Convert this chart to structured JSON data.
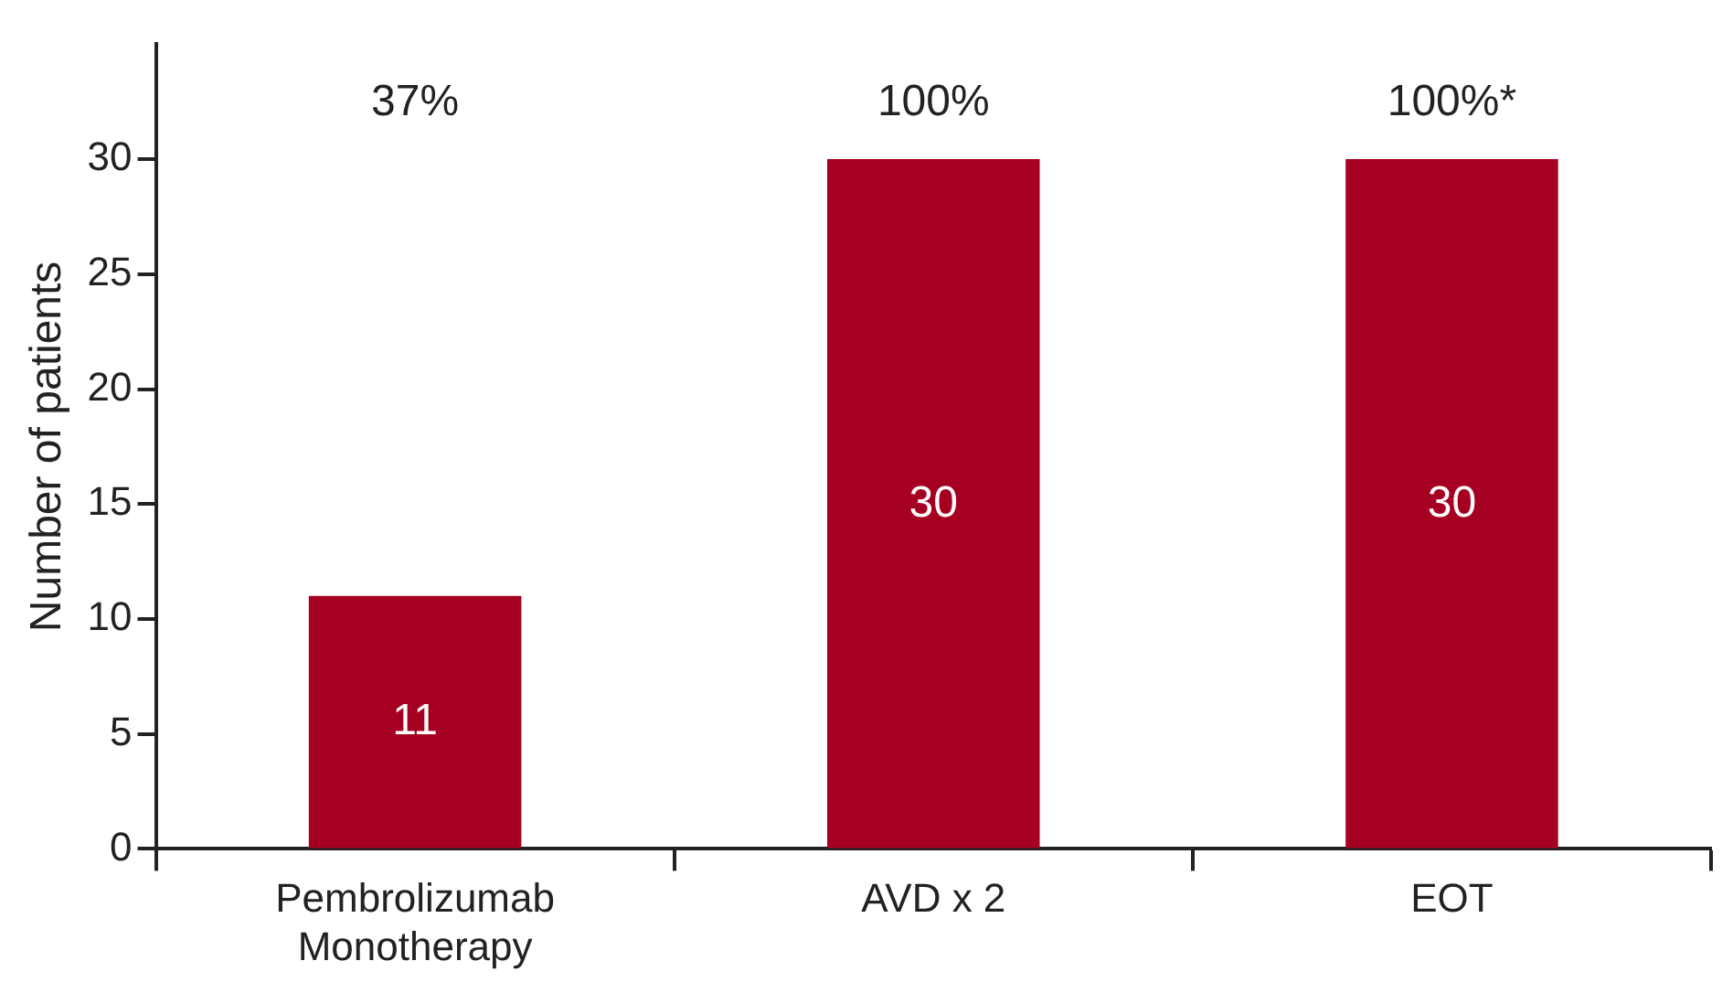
{
  "chart_data": {
    "type": "bar",
    "ylabel": "Number of patients",
    "categories": [
      "Pembrolizumab Monotherapy",
      "AVD x 2",
      "EOT"
    ],
    "values": [
      11,
      30,
      30
    ],
    "color": "#a50021",
    "ylim": [
      0,
      35
    ],
    "yticks": [
      0,
      5,
      10,
      15,
      20,
      25,
      30
    ],
    "grid": false,
    "legend": false,
    "data_labels": true,
    "annotations": [
      "37%",
      "100%",
      "100%*"
    ]
  }
}
